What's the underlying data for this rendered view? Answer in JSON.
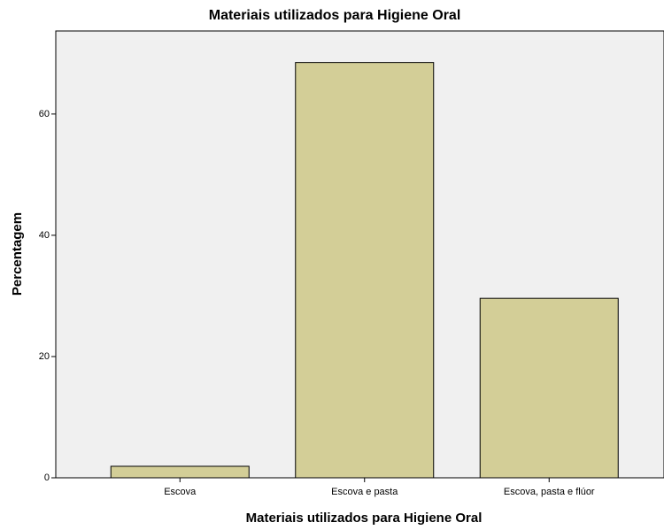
{
  "chart_data": {
    "type": "bar",
    "title": "Materiais utilizados para Higiene Oral",
    "x_label": "Materiais utilizados para Higiene Oral",
    "y_label": "Percentagem",
    "categories": [
      "Escova",
      "Escova e pasta",
      "Escova, pasta e flúor"
    ],
    "values": [
      1.9,
      68.5,
      29.6
    ],
    "color": "#d3ce97",
    "ylim": [
      0,
      73.7
    ],
    "yticks": [
      0,
      20,
      40,
      60
    ],
    "grid": false
  }
}
